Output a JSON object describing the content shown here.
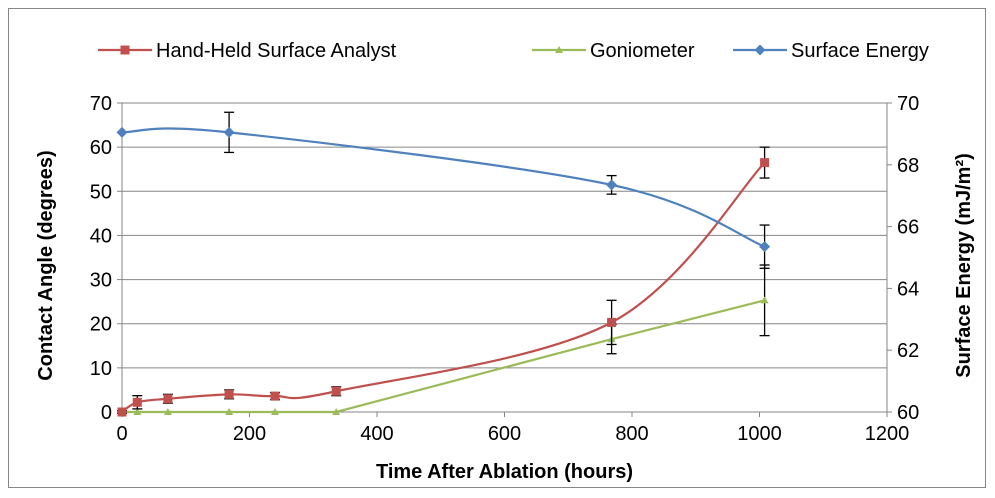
{
  "chart_data": {
    "type": "line",
    "title": "",
    "xlabel": "Time After Ablation (hours)",
    "ylabel": "Contact Angle (degrees)",
    "y2label": "Surface Energy (mJ/m²)",
    "xlim": [
      0,
      1200
    ],
    "ylim": [
      0,
      70
    ],
    "y2lim": [
      60,
      70
    ],
    "x_ticks": [
      "0",
      "200",
      "400",
      "600",
      "800",
      "1000",
      "1200"
    ],
    "y_ticks": [
      "0",
      "10",
      "20",
      "30",
      "40",
      "50",
      "60",
      "70"
    ],
    "y2_ticks": [
      "60",
      "62",
      "64",
      "66",
      "68",
      "70"
    ],
    "grid": true,
    "legend_position": "top",
    "series": [
      {
        "name": "Hand-Held Surface Analyst",
        "axis": "left",
        "color": "#C0504D",
        "marker": "square",
        "x": [
          0,
          24,
          72,
          168,
          240,
          336,
          768,
          1008
        ],
        "y": [
          0,
          2.2,
          3,
          4,
          3.6,
          4.7,
          20.3,
          56.5
        ],
        "error": [
          0.3,
          1.5,
          1,
          1,
          0.8,
          1,
          5,
          3.5
        ]
      },
      {
        "name": "Goniometer",
        "axis": "left",
        "color": "#9BBB59",
        "marker": "triangle",
        "x": [
          0,
          24,
          72,
          168,
          240,
          336,
          768,
          1008
        ],
        "y": [
          0,
          0,
          0,
          0,
          0,
          0,
          16.5,
          25.3
        ],
        "error": [
          0,
          0,
          0,
          0,
          0,
          0,
          3.3,
          8
        ]
      },
      {
        "name": "Surface Energy",
        "axis": "right",
        "color": "#4F81BD",
        "marker": "diamond",
        "x": [
          0,
          168,
          768,
          1008
        ],
        "y": [
          69.05,
          69.05,
          67.35,
          65.35
        ],
        "error": [
          0,
          0.65,
          0.3,
          0.7
        ]
      }
    ]
  }
}
